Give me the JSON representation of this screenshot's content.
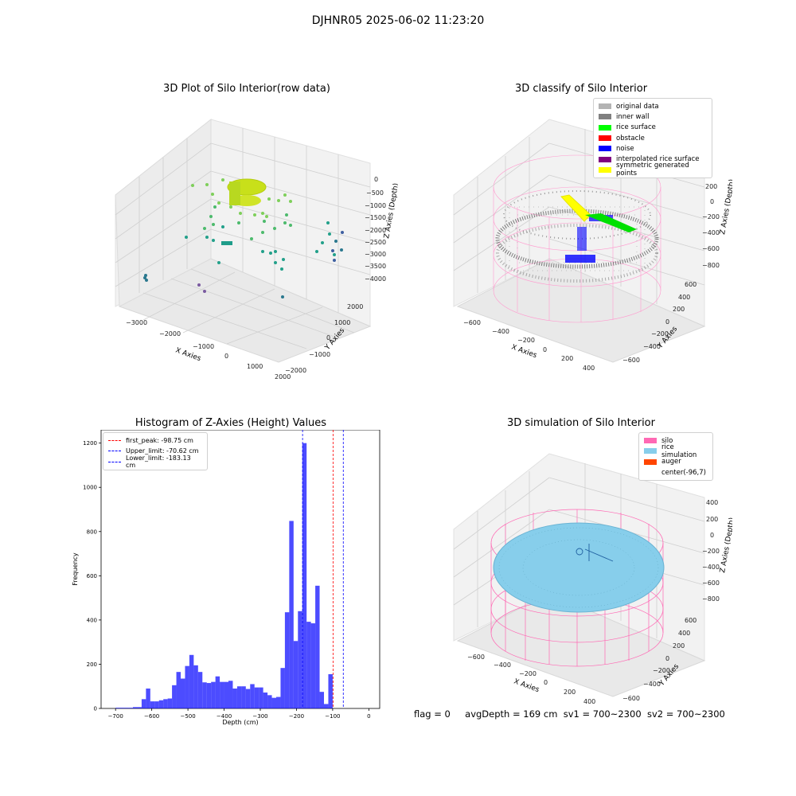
{
  "figure_title": "DJHNR05 2025-06-02 11:23:20",
  "footer": {
    "flag": "flag = 0",
    "avgDepth": "avgDepth = 169 cm",
    "sv1": "sv1 = 700~2300",
    "sv2": "sv2 = 700~2300"
  },
  "panels": {
    "raw": {
      "title": "3D Plot of Silo Interior(row data)",
      "xlabel": "X Axies",
      "ylabel": "Y Axies",
      "zlabel": "Z Axies (Depth)",
      "xticks": [
        "−3000",
        "−2000",
        "−1000",
        "0",
        "1000",
        "2000"
      ],
      "yticks": [
        "−2000",
        "−1000",
        "0",
        "1000",
        "2000"
      ],
      "zticks": [
        "0",
        "−500",
        "−1000",
        "−1500",
        "−2000",
        "−2500",
        "−3000",
        "−3500",
        "−4000"
      ]
    },
    "classify": {
      "title": "3D classify of Silo Interior",
      "xlabel": "X Axies",
      "ylabel": "Y Axies",
      "zlabel": "Z Axies (Depth)",
      "xticks": [
        "−600",
        "−400",
        "−200",
        "0",
        "200",
        "400"
      ],
      "yticks": [
        "−600",
        "−400",
        "−200",
        "0",
        "200",
        "400",
        "600"
      ],
      "zticks": [
        "200",
        "0",
        "−200",
        "−400",
        "−600",
        "−800"
      ],
      "zticks_hidden": [
        "400"
      ],
      "legend": [
        {
          "label": "original data",
          "color": "#b3b3b3"
        },
        {
          "label": "inner wall",
          "color": "#808080"
        },
        {
          "label": "rice surface",
          "color": "#00ff00"
        },
        {
          "label": "obstacle",
          "color": "#ff0000"
        },
        {
          "label": "noise",
          "color": "#0000ff"
        },
        {
          "label": "interpolated rice surface",
          "color": "#800080"
        },
        {
          "label": "symmetric generated points",
          "color": "#ffff00"
        }
      ]
    },
    "simulation": {
      "title": "3D simulation of Silo Interior",
      "xlabel": "X Axies",
      "ylabel": "Y Axies",
      "zlabel": "Z Axies (Depth)",
      "xticks": [
        "−600",
        "−400",
        "−200",
        "0",
        "200",
        "400"
      ],
      "yticks": [
        "−600",
        "−400",
        "−200",
        "0",
        "200",
        "400",
        "600"
      ],
      "zticks": [
        "400",
        "200",
        "0",
        "−200",
        "−400",
        "−600",
        "−800"
      ],
      "legend": [
        {
          "label": "silo",
          "color": "#ff69b4"
        },
        {
          "label": "rice simulation",
          "color": "#87ceeb"
        },
        {
          "label": "auger",
          "color": "#ff4500"
        },
        {
          "label": "center(-96,7)",
          "color": "#ffffff"
        }
      ]
    }
  },
  "chart_data": [
    {
      "type": "bar",
      "title": "Histogram of Z-Axies (Height) Values",
      "xlabel": "Depth (cm)",
      "ylabel": "Frequency",
      "xlim": [
        -740,
        30
      ],
      "ylim": [
        0,
        1260
      ],
      "xticks": [
        -700,
        -600,
        -500,
        -400,
        -300,
        -200,
        -100,
        0
      ],
      "yticks": [
        0,
        200,
        400,
        600,
        800,
        1000,
        1200
      ],
      "bar_color": "#0000ff",
      "bin_width": 12,
      "bins_left": [
        -700,
        -688,
        -676,
        -664,
        -652,
        -640,
        -628,
        -616,
        -604,
        -592,
        -580,
        -568,
        -556,
        -544,
        -532,
        -520,
        -508,
        -496,
        -484,
        -472,
        -460,
        -448,
        -436,
        -424,
        -412,
        -400,
        -388,
        -376,
        -364,
        -352,
        -340,
        -328,
        -316,
        -304,
        -292,
        -280,
        -268,
        -256,
        -244,
        -232,
        -220,
        -208,
        -196,
        -184,
        -172,
        -160,
        -148,
        -136,
        -124,
        -112,
        -100,
        -88,
        -76,
        -64,
        -52,
        -40,
        -28,
        -16
      ],
      "values": [
        3,
        3,
        3,
        3,
        6,
        6,
        42,
        90,
        32,
        32,
        37,
        42,
        45,
        105,
        165,
        135,
        192,
        242,
        195,
        165,
        118,
        115,
        120,
        145,
        120,
        120,
        125,
        90,
        100,
        100,
        88,
        110,
        95,
        95,
        72,
        60,
        48,
        52,
        183,
        435,
        848,
        305,
        440,
        1200,
        392,
        385,
        555,
        75,
        20,
        155,
        0,
        0,
        0,
        0,
        0,
        0,
        0,
        0
      ],
      "vlines": [
        {
          "label": "first_peak: -98.75 cm",
          "x": -98.75,
          "color": "#ff0000"
        },
        {
          "label": "Upper_limit: -70.62 cm",
          "x": -70.62,
          "color": "#0000ff"
        },
        {
          "label": "Lower_limit: -183.13 cm",
          "x": -183.13,
          "color": "#0000ff"
        }
      ]
    }
  ]
}
